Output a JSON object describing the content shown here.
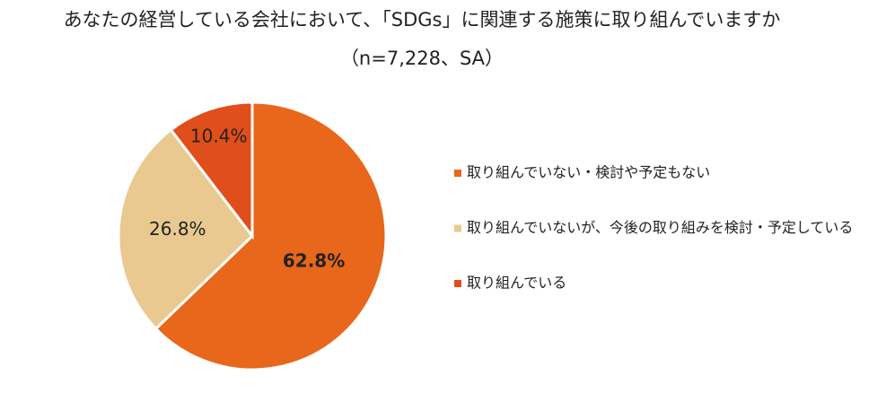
{
  "chart_data": {
    "type": "pie",
    "title": "あなたの経営している会社において、「SDGs」に関連する施策に取り組んでいますか",
    "subtitle": "（n=7,228、SA）",
    "categories": [
      "取り組んでいない・検討や予定もない",
      "取り組んでいないが、今後の取り組みを検討・予定している",
      "取り組んでいる"
    ],
    "values": [
      62.8,
      26.8,
      10.4
    ],
    "value_labels": [
      "62.8%",
      "26.8%",
      "10.4%"
    ],
    "colors": [
      "#e8671a",
      "#e9c98f",
      "#e04e1b"
    ]
  }
}
